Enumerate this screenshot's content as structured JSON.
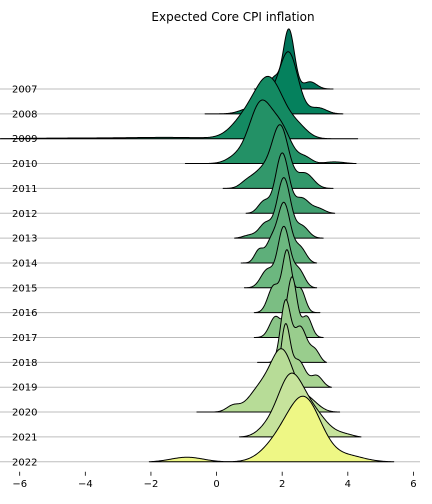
{
  "chart_data": {
    "type": "ridgeline",
    "title": "Expected Core CPI inflation",
    "xlabel": "",
    "ylabel": "",
    "xlim": [
      -6.6,
      6.2
    ],
    "xticks": [
      -6,
      -4,
      -2,
      0,
      2,
      4,
      6
    ],
    "xtick_labels": [
      "−6",
      "−4",
      "−2",
      "0",
      "2",
      "4",
      "6"
    ],
    "grid": false,
    "legend": "none",
    "colormap": "summer",
    "series": [
      {
        "name": "2007",
        "color": "#00745a",
        "range": [
          1.15,
          3.55
        ],
        "peaks": [
          {
            "mu": 2.2,
            "sigma": 0.17,
            "w": 1.0
          },
          {
            "mu": 1.75,
            "sigma": 0.14,
            "w": 0.18
          },
          {
            "mu": 2.85,
            "sigma": 0.2,
            "w": 0.12
          }
        ]
      },
      {
        "name": "2008",
        "color": "#05815d",
        "range": [
          -0.35,
          3.85
        ],
        "peaks": [
          {
            "mu": 2.2,
            "sigma": 0.28,
            "w": 1.0
          },
          {
            "mu": 1.6,
            "sigma": 0.3,
            "w": 0.25
          },
          {
            "mu": 1.0,
            "sigma": 0.3,
            "w": 0.08
          },
          {
            "mu": 3.1,
            "sigma": 0.25,
            "w": 0.1
          }
        ]
      },
      {
        "name": "2009",
        "color": "#148a62",
        "range": [
          -6.6,
          4.3
        ],
        "peaks": [
          {
            "mu": 1.6,
            "sigma": 0.45,
            "w": 1.0
          },
          {
            "mu": 0.8,
            "sigma": 0.4,
            "w": 0.25
          },
          {
            "mu": 2.5,
            "sigma": 0.3,
            "w": 0.15
          },
          {
            "mu": -1.5,
            "sigma": 1.5,
            "w": 0.025
          },
          {
            "mu": -5.0,
            "sigma": 1.5,
            "w": 0.015
          }
        ]
      },
      {
        "name": "2010",
        "color": "#239166",
        "range": [
          -0.95,
          4.25
        ],
        "peaks": [
          {
            "mu": 1.35,
            "sigma": 0.35,
            "w": 1.0
          },
          {
            "mu": 2.0,
            "sigma": 0.3,
            "w": 0.5
          },
          {
            "mu": 0.6,
            "sigma": 0.3,
            "w": 0.1
          },
          {
            "mu": 2.7,
            "sigma": 0.2,
            "w": 0.1
          },
          {
            "mu": 3.6,
            "sigma": 0.3,
            "w": 0.03
          }
        ]
      },
      {
        "name": "2011",
        "color": "#32986b",
        "range": [
          0.2,
          3.55
        ],
        "peaks": [
          {
            "mu": 1.95,
            "sigma": 0.25,
            "w": 1.0
          },
          {
            "mu": 1.4,
            "sigma": 0.3,
            "w": 0.3
          },
          {
            "mu": 2.7,
            "sigma": 0.25,
            "w": 0.25
          },
          {
            "mu": 0.9,
            "sigma": 0.2,
            "w": 0.08
          }
        ]
      },
      {
        "name": "2012",
        "color": "#419f70",
        "range": [
          0.9,
          3.6
        ],
        "peaks": [
          {
            "mu": 2.0,
            "sigma": 0.2,
            "w": 1.0
          },
          {
            "mu": 1.45,
            "sigma": 0.18,
            "w": 0.2
          },
          {
            "mu": 2.6,
            "sigma": 0.22,
            "w": 0.25
          },
          {
            "mu": 3.1,
            "sigma": 0.2,
            "w": 0.08
          }
        ]
      },
      {
        "name": "2013",
        "color": "#50a775",
        "range": [
          0.55,
          3.25
        ],
        "peaks": [
          {
            "mu": 2.05,
            "sigma": 0.2,
            "w": 1.0
          },
          {
            "mu": 1.5,
            "sigma": 0.2,
            "w": 0.25
          },
          {
            "mu": 2.6,
            "sigma": 0.2,
            "w": 0.2
          },
          {
            "mu": 1.0,
            "sigma": 0.2,
            "w": 0.05
          }
        ]
      },
      {
        "name": "2014",
        "color": "#5eaf7a",
        "range": [
          0.75,
          3.05
        ],
        "peaks": [
          {
            "mu": 2.05,
            "sigma": 0.2,
            "w": 1.0
          },
          {
            "mu": 1.3,
            "sigma": 0.14,
            "w": 0.22
          },
          {
            "mu": 1.65,
            "sigma": 0.15,
            "w": 0.3
          },
          {
            "mu": 2.55,
            "sigma": 0.18,
            "w": 0.25
          }
        ]
      },
      {
        "name": "2015",
        "color": "#6cb77f",
        "range": [
          0.85,
          3.05
        ],
        "peaks": [
          {
            "mu": 2.05,
            "sigma": 0.18,
            "w": 1.0
          },
          {
            "mu": 1.55,
            "sigma": 0.2,
            "w": 0.3
          },
          {
            "mu": 2.5,
            "sigma": 0.18,
            "w": 0.3
          }
        ]
      },
      {
        "name": "2016",
        "color": "#7bbe83",
        "range": [
          1.15,
          3.15
        ],
        "peaks": [
          {
            "mu": 2.15,
            "sigma": 0.14,
            "w": 1.0
          },
          {
            "mu": 1.75,
            "sigma": 0.18,
            "w": 0.45
          },
          {
            "mu": 2.55,
            "sigma": 0.15,
            "w": 0.4
          }
        ]
      },
      {
        "name": "2017",
        "color": "#8ac588",
        "range": [
          1.15,
          3.25
        ],
        "peaks": [
          {
            "mu": 2.3,
            "sigma": 0.15,
            "w": 1.0
          },
          {
            "mu": 1.8,
            "sigma": 0.18,
            "w": 0.35
          },
          {
            "mu": 2.75,
            "sigma": 0.15,
            "w": 0.35
          }
        ]
      },
      {
        "name": "2018",
        "color": "#99cd8d",
        "range": [
          1.25,
          3.35
        ],
        "peaks": [
          {
            "mu": 2.1,
            "sigma": 0.15,
            "w": 1.0
          },
          {
            "mu": 2.55,
            "sigma": 0.2,
            "w": 0.6
          },
          {
            "mu": 3.0,
            "sigma": 0.15,
            "w": 0.2
          }
        ]
      },
      {
        "name": "2019",
        "color": "#a8d492",
        "range": [
          1.25,
          3.5
        ],
        "peaks": [
          {
            "mu": 2.1,
            "sigma": 0.14,
            "w": 1.0
          },
          {
            "mu": 2.5,
            "sigma": 0.2,
            "w": 0.45
          },
          {
            "mu": 3.05,
            "sigma": 0.18,
            "w": 0.2
          },
          {
            "mu": 1.65,
            "sigma": 0.2,
            "w": 0.1
          }
        ]
      },
      {
        "name": "2020",
        "color": "#b7dc97",
        "range": [
          -0.6,
          3.75
        ],
        "peaks": [
          {
            "mu": 2.0,
            "sigma": 0.35,
            "w": 1.0
          },
          {
            "mu": 1.3,
            "sigma": 0.35,
            "w": 0.35
          },
          {
            "mu": 0.5,
            "sigma": 0.2,
            "w": 0.1
          },
          {
            "mu": 2.8,
            "sigma": 0.3,
            "w": 0.2
          }
        ]
      },
      {
        "name": "2021",
        "color": "#c6e39c",
        "range": [
          0.7,
          4.4
        ],
        "peaks": [
          {
            "mu": 2.25,
            "sigma": 0.4,
            "w": 1.0
          },
          {
            "mu": 3.0,
            "sigma": 0.4,
            "w": 0.35
          },
          {
            "mu": 1.5,
            "sigma": 0.3,
            "w": 0.1
          },
          {
            "mu": 3.9,
            "sigma": 0.3,
            "w": 0.05
          }
        ]
      },
      {
        "name": "2022",
        "color": "#eef785",
        "range": [
          -2.05,
          5.4
        ],
        "peaks": [
          {
            "mu": 2.7,
            "sigma": 0.5,
            "w": 1.0
          },
          {
            "mu": 1.9,
            "sigma": 0.5,
            "w": 0.3
          },
          {
            "mu": -0.9,
            "sigma": 0.5,
            "w": 0.08
          },
          {
            "mu": 4.0,
            "sigma": 0.5,
            "w": 0.1
          }
        ]
      }
    ]
  }
}
